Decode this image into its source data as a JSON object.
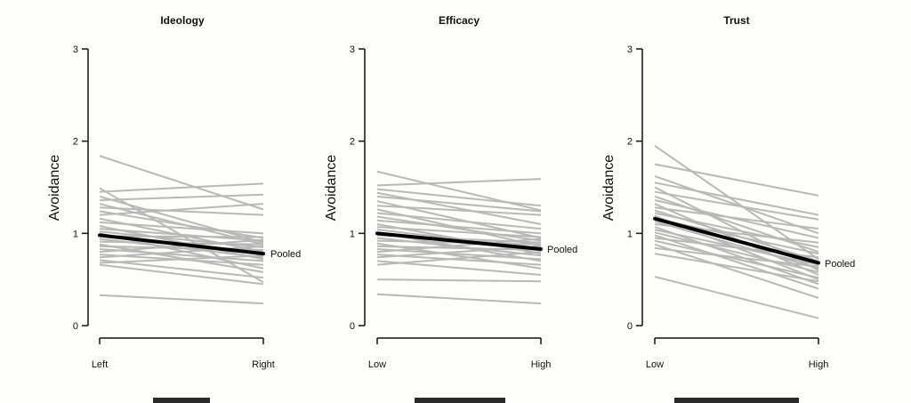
{
  "chart_data": [
    {
      "type": "line",
      "title": "Ideology",
      "ylabel": "Avoidance",
      "categories": [
        "Left",
        "Right"
      ],
      "ylim": [
        0,
        3
      ],
      "yticks": [
        0,
        1,
        2,
        3
      ],
      "pooled": {
        "name": "Pooled",
        "values": [
          0.98,
          0.78
        ],
        "color": "#000000"
      },
      "individual_color": "#b8b8b8",
      "individual": [
        [
          1.84,
          1.26
        ],
        [
          1.49,
          0.47
        ],
        [
          1.45,
          1.54
        ],
        [
          1.4,
          0.9
        ],
        [
          1.36,
          1.42
        ],
        [
          1.32,
          0.88
        ],
        [
          1.28,
          1.2
        ],
        [
          1.24,
          0.95
        ],
        [
          1.2,
          1.32
        ],
        [
          1.16,
          0.8
        ],
        [
          1.12,
          1.0
        ],
        [
          1.08,
          0.72
        ],
        [
          1.05,
          0.92
        ],
        [
          1.02,
          0.85
        ],
        [
          1.0,
          0.62
        ],
        [
          0.97,
          0.96
        ],
        [
          0.94,
          0.74
        ],
        [
          0.91,
          0.88
        ],
        [
          0.88,
          0.58
        ],
        [
          0.86,
          0.82
        ],
        [
          0.83,
          0.7
        ],
        [
          0.8,
          0.93
        ],
        [
          0.77,
          0.66
        ],
        [
          0.74,
          0.86
        ],
        [
          0.71,
          0.52
        ],
        [
          0.68,
          0.76
        ],
        [
          0.66,
          0.45
        ],
        [
          0.33,
          0.24
        ]
      ]
    },
    {
      "type": "line",
      "title": "Efficacy",
      "ylabel": "Avoidance",
      "categories": [
        "Low",
        "High"
      ],
      "ylim": [
        0,
        3
      ],
      "yticks": [
        0,
        1,
        2,
        3
      ],
      "pooled": {
        "name": "Pooled",
        "values": [
          1.0,
          0.83
        ],
        "color": "#000000"
      },
      "individual_color": "#b8b8b8",
      "individual": [
        [
          1.67,
          1.25
        ],
        [
          1.52,
          1.59
        ],
        [
          1.48,
          1.3
        ],
        [
          1.44,
          1.1
        ],
        [
          1.4,
          1.24
        ],
        [
          1.35,
          0.95
        ],
        [
          1.3,
          1.2
        ],
        [
          1.26,
          0.86
        ],
        [
          1.22,
          1.05
        ],
        [
          1.18,
          0.92
        ],
        [
          1.14,
          1.0
        ],
        [
          1.1,
          0.78
        ],
        [
          1.07,
          0.96
        ],
        [
          1.04,
          0.84
        ],
        [
          1.01,
          0.7
        ],
        [
          0.98,
          0.9
        ],
        [
          0.95,
          0.76
        ],
        [
          0.92,
          0.88
        ],
        [
          0.89,
          0.62
        ],
        [
          0.86,
          0.82
        ],
        [
          0.83,
          0.72
        ],
        [
          0.8,
          0.94
        ],
        [
          0.77,
          0.66
        ],
        [
          0.74,
          0.86
        ],
        [
          0.7,
          0.55
        ],
        [
          0.66,
          0.8
        ],
        [
          0.5,
          0.48
        ],
        [
          0.34,
          0.24
        ]
      ]
    },
    {
      "type": "line",
      "title": "Trust",
      "ylabel": "Avoidance",
      "categories": [
        "Low",
        "High"
      ],
      "ylim": [
        0,
        3
      ],
      "yticks": [
        0,
        1,
        2,
        3
      ],
      "pooled": {
        "name": "Pooled",
        "values": [
          1.16,
          0.68
        ],
        "color": "#000000"
      },
      "individual_color": "#b8b8b8",
      "individual": [
        [
          1.95,
          0.72
        ],
        [
          1.75,
          1.41
        ],
        [
          1.62,
          1.0
        ],
        [
          1.55,
          1.2
        ],
        [
          1.5,
          0.6
        ],
        [
          1.45,
          1.15
        ],
        [
          1.4,
          0.8
        ],
        [
          1.36,
          0.95
        ],
        [
          1.32,
          0.55
        ],
        [
          1.28,
          1.05
        ],
        [
          1.25,
          0.7
        ],
        [
          1.22,
          0.85
        ],
        [
          1.19,
          0.5
        ],
        [
          1.16,
          0.78
        ],
        [
          1.13,
          0.62
        ],
        [
          1.1,
          0.9
        ],
        [
          1.07,
          0.45
        ],
        [
          1.04,
          0.66
        ],
        [
          1.01,
          0.58
        ],
        [
          0.98,
          0.4
        ],
        [
          0.95,
          0.74
        ],
        [
          0.92,
          0.52
        ],
        [
          0.88,
          0.3
        ],
        [
          0.84,
          0.64
        ],
        [
          0.78,
          0.48
        ],
        [
          0.53,
          0.08
        ]
      ]
    }
  ]
}
